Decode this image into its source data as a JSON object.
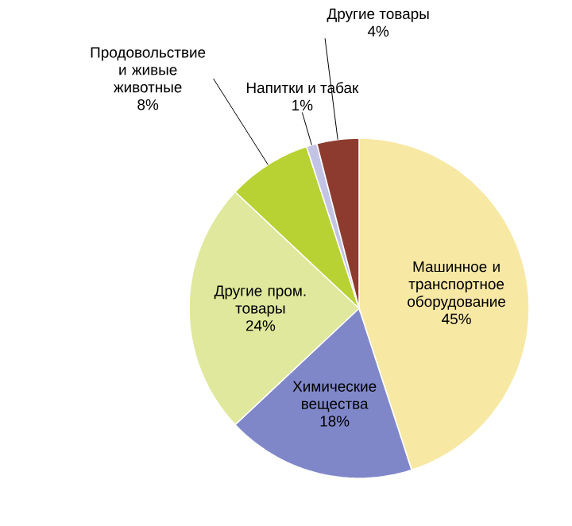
{
  "chart_data": {
    "type": "pie",
    "categories": [
      "Машинное и транспортное оборудование",
      "Химические вещества",
      "Другие пром. товары",
      "Продовольствие и живые животные",
      "Напитки и табак",
      "Другие товары"
    ],
    "values": [
      45,
      18,
      24,
      8,
      1,
      4
    ],
    "value_labels": [
      "45%",
      "18%",
      "24%",
      "8%",
      "1%",
      "4%"
    ],
    "colors": [
      "#f7e8a4",
      "#7f87c9",
      "#dfe89c",
      "#b8d234",
      "#c3c3e6",
      "#8e3b2f"
    ]
  }
}
